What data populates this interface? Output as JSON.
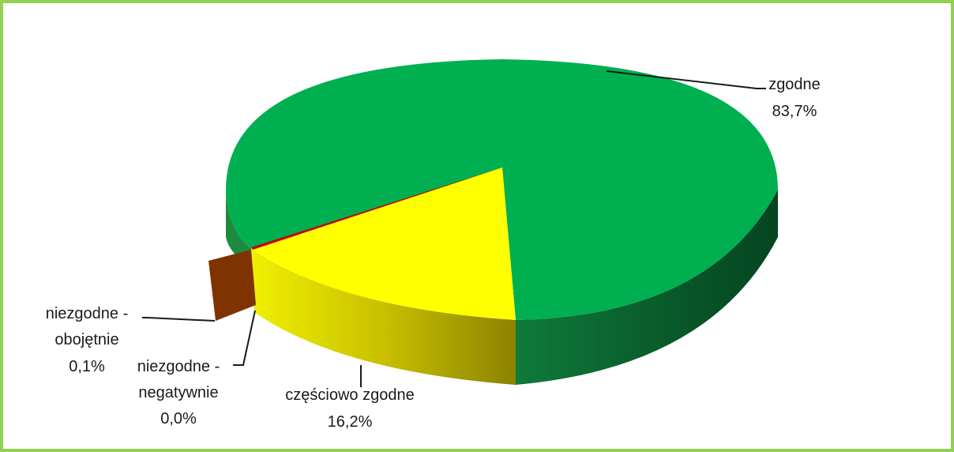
{
  "chart_data": {
    "type": "pie",
    "title": "",
    "slices": [
      {
        "name": "zgodne",
        "value": 83.7,
        "label": "83,7%",
        "color": "#00b050"
      },
      {
        "name": "częściowo zgodne",
        "value": 16.2,
        "label": "16,2%",
        "color": "#ffff00"
      },
      {
        "name": "niezgodne - negatywnie",
        "value": 0.0,
        "label": "0,0%",
        "color": "#c00000"
      },
      {
        "name": "niezgodne - obojętnie",
        "value": 0.1,
        "label": "0,1%",
        "color": "#7f3300"
      }
    ],
    "labels": {
      "zgodne": {
        "line1": "zgodne",
        "line2": "83,7%"
      },
      "czesciowo": {
        "line1": "częściowo zgodne",
        "line2": "16,2%"
      },
      "negatywnie": {
        "line1": "niezgodne -",
        "line2": "negatywnie",
        "line3": "0,0%"
      },
      "obojetnie": {
        "line1": "niezgodne -",
        "line2": "obojętnie",
        "line3": "0,1%"
      }
    },
    "frame_color": "#92d050"
  }
}
